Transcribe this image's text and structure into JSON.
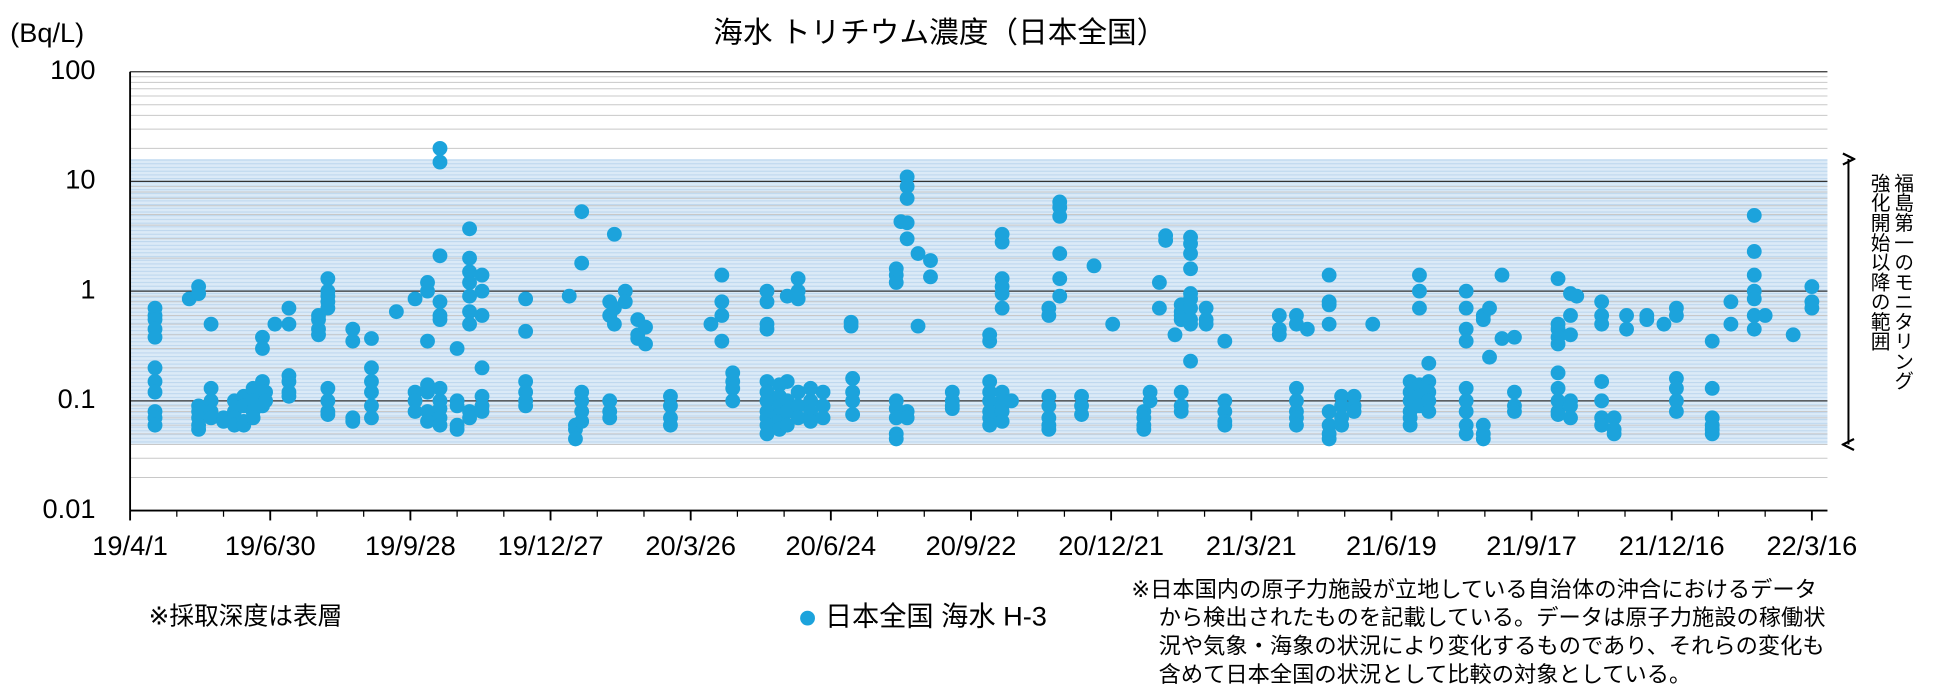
{
  "chart_data": {
    "type": "scatter",
    "title": "海水 トリチウム濃度（日本全国）",
    "y_label": "(Bq/L)",
    "log_y": true,
    "minor_grid": true,
    "xlim": [
      "2019-04-01",
      "2022-03-26"
    ],
    "xticks": [
      {
        "value": "2019-04-01",
        "label": "19/4/1"
      },
      {
        "value": "2019-06-30",
        "label": "19/6/30"
      },
      {
        "value": "2019-09-28",
        "label": "19/9/28"
      },
      {
        "value": "2019-12-27",
        "label": "19/12/27"
      },
      {
        "value": "2020-03-26",
        "label": "20/3/26"
      },
      {
        "value": "2020-06-24",
        "label": "20/6/24"
      },
      {
        "value": "2020-09-22",
        "label": "20/9/22"
      },
      {
        "value": "2020-12-21",
        "label": "20/12/21"
      },
      {
        "value": "2021-03-21",
        "label": "21/3/21"
      },
      {
        "value": "2021-06-19",
        "label": "21/6/19"
      },
      {
        "value": "2021-09-17",
        "label": "21/9/17"
      },
      {
        "value": "2021-12-16",
        "label": "21/12/16"
      },
      {
        "value": "2022-03-16",
        "label": "22/3/16"
      }
    ],
    "ylim": [
      0.01,
      100
    ],
    "yticks": [
      0.01,
      0.1,
      1,
      10,
      100
    ],
    "shaded_range": [
      0.04,
      16
    ],
    "shaded_label": [
      "福島第一のモニタリング",
      "強化開始以降の範囲"
    ],
    "legend": "bottom",
    "notes": {
      "left": "※採取深度は表層",
      "right": [
        "※日本国内の原子力施設が立地している自治体の沖合におけるデータ",
        "から検出されたものを記載している。データは原子力施設の稼働状",
        "況や気象・海象の状況により変化するものであり、それらの変化も",
        "含めて日本全国の状況として比較の対象としている。"
      ]
    },
    "series": [
      {
        "name": "日本全国 海水 H-3",
        "color": "#1ca3dc",
        "x": [
          "2019-04-17",
          "2019-04-17",
          "2019-04-17",
          "2019-04-17",
          "2019-04-17",
          "2019-04-17",
          "2019-04-17",
          "2019-04-17",
          "2019-04-17",
          "2019-04-17",
          "2019-04-17",
          "2019-05-09",
          "2019-05-15",
          "2019-05-15",
          "2019-05-15",
          "2019-05-15",
          "2019-05-15",
          "2019-05-15",
          "2019-05-15",
          "2019-05-23",
          "2019-05-23",
          "2019-05-23",
          "2019-05-23",
          "2019-05-23",
          "2019-05-31",
          "2019-05-31",
          "2019-06-07",
          "2019-06-07",
          "2019-06-07",
          "2019-06-07",
          "2019-06-13",
          "2019-06-13",
          "2019-06-13",
          "2019-06-13",
          "2019-06-19",
          "2019-06-19",
          "2019-06-19",
          "2019-06-19",
          "2019-06-25",
          "2019-06-25",
          "2019-06-25",
          "2019-06-25",
          "2019-06-25",
          "2019-06-27",
          "2019-06-27",
          "2019-07-03",
          "2019-07-12",
          "2019-07-12",
          "2019-07-12",
          "2019-07-12",
          "2019-07-12",
          "2019-07-12",
          "2019-07-31",
          "2019-07-31",
          "2019-07-31",
          "2019-07-31",
          "2019-08-06",
          "2019-08-06",
          "2019-08-06",
          "2019-08-06",
          "2019-08-06",
          "2019-08-06",
          "2019-08-06",
          "2019-08-06",
          "2019-08-06",
          "2019-08-22",
          "2019-08-22",
          "2019-08-22",
          "2019-08-22",
          "2019-09-03",
          "2019-09-03",
          "2019-09-03",
          "2019-09-03",
          "2019-09-03",
          "2019-09-03",
          "2019-09-19",
          "2019-10-01",
          "2019-10-01",
          "2019-10-01",
          "2019-10-01",
          "2019-10-09",
          "2019-10-09",
          "2019-10-09",
          "2019-10-09",
          "2019-10-09",
          "2019-10-09",
          "2019-10-09",
          "2019-10-17",
          "2019-10-17",
          "2019-10-17",
          "2019-10-17",
          "2019-10-17",
          "2019-10-17",
          "2019-10-17",
          "2019-10-17",
          "2019-10-17",
          "2019-10-17",
          "2019-10-17",
          "2019-10-28",
          "2019-10-28",
          "2019-10-28",
          "2019-10-28",
          "2019-10-28",
          "2019-11-05",
          "2019-11-05",
          "2019-11-05",
          "2019-11-05",
          "2019-11-05",
          "2019-11-05",
          "2019-11-05",
          "2019-11-05",
          "2019-11-05",
          "2019-11-13",
          "2019-11-13",
          "2019-11-13",
          "2019-11-13",
          "2019-11-13",
          "2019-11-13",
          "2019-11-13",
          "2019-12-11",
          "2019-12-11",
          "2019-12-11",
          "2019-12-11",
          "2019-12-11",
          "2019-12-11",
          "2020-01-08",
          "2020-01-12",
          "2020-01-12",
          "2020-01-12",
          "2020-01-16",
          "2020-01-16",
          "2020-01-16",
          "2020-01-16",
          "2020-01-16",
          "2020-01-16",
          "2020-02-03",
          "2020-02-03",
          "2020-02-03",
          "2020-02-03",
          "2020-02-03",
          "2020-02-06",
          "2020-02-06",
          "2020-02-06",
          "2020-02-13",
          "2020-02-13",
          "2020-02-21",
          "2020-02-21",
          "2020-02-21",
          "2020-02-26",
          "2020-02-26",
          "2020-03-13",
          "2020-03-13",
          "2020-03-13",
          "2020-03-13",
          "2020-04-08",
          "2020-04-15",
          "2020-04-15",
          "2020-04-15",
          "2020-04-15",
          "2020-04-22",
          "2020-04-22",
          "2020-04-22",
          "2020-04-22",
          "2020-05-14",
          "2020-05-14",
          "2020-05-14",
          "2020-05-14",
          "2020-05-14",
          "2020-05-14",
          "2020-05-14",
          "2020-05-14",
          "2020-05-14",
          "2020-05-14",
          "2020-05-14",
          "2020-05-22",
          "2020-05-22",
          "2020-05-22",
          "2020-05-22",
          "2020-05-22",
          "2020-05-22",
          "2020-05-27",
          "2020-05-27",
          "2020-05-27",
          "2020-05-27",
          "2020-05-27",
          "2020-06-03",
          "2020-06-03",
          "2020-06-03",
          "2020-06-03",
          "2020-06-03",
          "2020-06-03",
          "2020-06-11",
          "2020-06-11",
          "2020-06-11",
          "2020-06-11",
          "2020-06-19",
          "2020-06-19",
          "2020-06-19",
          "2020-07-07",
          "2020-07-07",
          "2020-07-08",
          "2020-07-08",
          "2020-07-08",
          "2020-07-08",
          "2020-08-05",
          "2020-08-05",
          "2020-08-05",
          "2020-08-05",
          "2020-08-05",
          "2020-08-05",
          "2020-08-05",
          "2020-08-05",
          "2020-08-08",
          "2020-08-12",
          "2020-08-12",
          "2020-08-12",
          "2020-08-12",
          "2020-08-12",
          "2020-08-12",
          "2020-08-12",
          "2020-08-19",
          "2020-08-19",
          "2020-08-27",
          "2020-08-27",
          "2020-09-10",
          "2020-09-10",
          "2020-09-10",
          "2020-09-10",
          "2020-10-04",
          "2020-10-04",
          "2020-10-04",
          "2020-10-04",
          "2020-10-04",
          "2020-10-04",
          "2020-10-04",
          "2020-10-04",
          "2020-10-12",
          "2020-10-12",
          "2020-10-12",
          "2020-10-12",
          "2020-10-12",
          "2020-10-12",
          "2020-10-12",
          "2020-10-12",
          "2020-10-12",
          "2020-10-12",
          "2020-10-12",
          "2020-10-18",
          "2020-11-11",
          "2020-11-11",
          "2020-11-11",
          "2020-11-11",
          "2020-11-11",
          "2020-11-11",
          "2020-11-11",
          "2020-11-18",
          "2020-11-18",
          "2020-11-18",
          "2020-11-18",
          "2020-11-18",
          "2020-11-18",
          "2020-12-02",
          "2020-12-02",
          "2020-12-02",
          "2020-12-10",
          "2020-12-22",
          "2021-01-11",
          "2021-01-11",
          "2021-01-11",
          "2021-01-11",
          "2021-01-15",
          "2021-01-15",
          "2021-01-21",
          "2021-01-21",
          "2021-01-25",
          "2021-01-25",
          "2021-01-31",
          "2021-02-04",
          "2021-02-04",
          "2021-02-04",
          "2021-02-04",
          "2021-02-04",
          "2021-02-04",
          "2021-02-04",
          "2021-02-10",
          "2021-02-10",
          "2021-02-10",
          "2021-02-10",
          "2021-02-10",
          "2021-02-10",
          "2021-02-10",
          "2021-02-10",
          "2021-02-10",
          "2021-02-10",
          "2021-02-20",
          "2021-02-20",
          "2021-02-20",
          "2021-03-04",
          "2021-03-04",
          "2021-03-04",
          "2021-03-04",
          "2021-03-04",
          "2021-04-08",
          "2021-04-08",
          "2021-04-08",
          "2021-04-19",
          "2021-04-19",
          "2021-04-19",
          "2021-04-19",
          "2021-04-19",
          "2021-04-19",
          "2021-04-19",
          "2021-04-26",
          "2021-05-10",
          "2021-05-10",
          "2021-05-10",
          "2021-05-10",
          "2021-05-10",
          "2021-05-10",
          "2021-05-10",
          "2021-05-10",
          "2021-05-18",
          "2021-05-18",
          "2021-05-18",
          "2021-05-18",
          "2021-05-26",
          "2021-05-26",
          "2021-05-26",
          "2021-06-07",
          "2021-07-01",
          "2021-07-01",
          "2021-07-01",
          "2021-07-01",
          "2021-07-01",
          "2021-07-01",
          "2021-07-07",
          "2021-07-07",
          "2021-07-07",
          "2021-07-07",
          "2021-07-07",
          "2021-07-07",
          "2021-07-13",
          "2021-07-13",
          "2021-07-13",
          "2021-07-13",
          "2021-07-13",
          "2021-08-06",
          "2021-08-06",
          "2021-08-06",
          "2021-08-06",
          "2021-08-06",
          "2021-08-06",
          "2021-08-06",
          "2021-08-06",
          "2021-08-06",
          "2021-08-17",
          "2021-08-17",
          "2021-08-17",
          "2021-08-17",
          "2021-08-17",
          "2021-08-21",
          "2021-08-21",
          "2021-08-29",
          "2021-08-29",
          "2021-09-06",
          "2021-09-06",
          "2021-09-06",
          "2021-09-06",
          "2021-10-04",
          "2021-10-04",
          "2021-10-04",
          "2021-10-04",
          "2021-10-04",
          "2021-10-04",
          "2021-10-04",
          "2021-10-04",
          "2021-10-04",
          "2021-10-04",
          "2021-10-12",
          "2021-10-12",
          "2021-10-12",
          "2021-10-12",
          "2021-10-12",
          "2021-10-12",
          "2021-10-16",
          "2021-11-01",
          "2021-11-01",
          "2021-11-01",
          "2021-11-01",
          "2021-11-01",
          "2021-11-01",
          "2021-11-01",
          "2021-11-09",
          "2021-11-09",
          "2021-11-09",
          "2021-11-17",
          "2021-11-17",
          "2021-11-30",
          "2021-11-30",
          "2021-12-11",
          "2021-12-19",
          "2021-12-19",
          "2021-12-19",
          "2021-12-19",
          "2021-12-19",
          "2021-12-19",
          "2022-01-11",
          "2022-01-11",
          "2022-01-11",
          "2022-01-11",
          "2022-01-11",
          "2022-01-11",
          "2022-01-23",
          "2022-01-23",
          "2022-02-07",
          "2022-02-07",
          "2022-02-07",
          "2022-02-07",
          "2022-02-07",
          "2022-02-07",
          "2022-02-07",
          "2022-02-14",
          "2022-03-04",
          "2022-03-16",
          "2022-03-16",
          "2022-03-16"
        ],
        "values": [
          0.7,
          0.6,
          0.55,
          0.45,
          0.38,
          0.2,
          0.15,
          0.12,
          0.08,
          0.07,
          0.06,
          0.85,
          1.1,
          0.95,
          0.09,
          0.08,
          0.07,
          0.06,
          0.055,
          0.5,
          0.13,
          0.1,
          0.08,
          0.07,
          0.07,
          0.065,
          0.1,
          0.08,
          0.07,
          0.06,
          0.11,
          0.09,
          0.065,
          0.06,
          0.13,
          0.1,
          0.08,
          0.07,
          0.38,
          0.3,
          0.15,
          0.12,
          0.09,
          0.12,
          0.1,
          0.5,
          0.7,
          0.5,
          0.17,
          0.15,
          0.12,
          0.11,
          0.6,
          0.55,
          0.45,
          0.4,
          1.3,
          1.0,
          0.9,
          0.8,
          0.7,
          0.13,
          0.1,
          0.08,
          0.075,
          0.45,
          0.35,
          0.07,
          0.065,
          0.37,
          0.2,
          0.15,
          0.12,
          0.09,
          0.07,
          0.65,
          0.85,
          0.12,
          0.1,
          0.08,
          1.2,
          1.0,
          0.35,
          0.14,
          0.12,
          0.08,
          0.065,
          20,
          15,
          2.1,
          0.8,
          0.6,
          0.55,
          0.13,
          0.1,
          0.085,
          0.07,
          0.06,
          0.3,
          0.1,
          0.09,
          0.06,
          0.055,
          3.7,
          2.0,
          1.5,
          1.2,
          0.9,
          0.65,
          0.5,
          0.08,
          0.07,
          1.4,
          1.0,
          0.6,
          0.2,
          0.11,
          0.09,
          0.08,
          0.85,
          0.43,
          0.15,
          0.12,
          0.1,
          0.09,
          0.9,
          0.06,
          0.055,
          0.045,
          5.3,
          1.8,
          0.12,
          0.1,
          0.08,
          0.065,
          0.8,
          0.6,
          0.1,
          0.08,
          0.07,
          3.3,
          0.7,
          0.5,
          1.0,
          0.8,
          0.55,
          0.4,
          0.37,
          0.47,
          0.33,
          0.11,
          0.09,
          0.07,
          0.06,
          0.5,
          1.4,
          0.8,
          0.6,
          0.35,
          0.18,
          0.15,
          0.13,
          0.1,
          1.0,
          0.8,
          0.5,
          0.45,
          0.15,
          0.12,
          0.1,
          0.08,
          0.07,
          0.06,
          0.05,
          0.14,
          0.11,
          0.09,
          0.075,
          0.065,
          0.055,
          0.9,
          0.15,
          0.1,
          0.08,
          0.06,
          1.3,
          1.0,
          0.85,
          0.12,
          0.09,
          0.07,
          0.13,
          0.1,
          0.08,
          0.065,
          0.12,
          0.09,
          0.07,
          0.52,
          0.48,
          0.16,
          0.12,
          0.1,
          0.075,
          1.6,
          1.4,
          1.2,
          0.1,
          0.085,
          0.07,
          0.05,
          0.045,
          4.3,
          11,
          9,
          7,
          4.2,
          3.0,
          0.08,
          0.07,
          2.2,
          0.48,
          1.9,
          1.35,
          0.12,
          0.1,
          0.09,
          0.085,
          0.4,
          0.35,
          0.15,
          0.12,
          0.1,
          0.08,
          0.07,
          0.06,
          3.3,
          2.8,
          1.3,
          1.1,
          0.95,
          0.7,
          0.12,
          0.1,
          0.09,
          0.08,
          0.065,
          0.1,
          0.7,
          0.6,
          0.11,
          0.09,
          0.07,
          0.06,
          0.055,
          6.5,
          5.8,
          4.8,
          2.2,
          1.3,
          0.9,
          0.11,
          0.09,
          0.075,
          1.7,
          0.5,
          0.08,
          0.07,
          0.06,
          0.055,
          0.12,
          0.1,
          1.2,
          0.7,
          3.2,
          2.9,
          0.4,
          0.75,
          0.65,
          0.6,
          0.55,
          0.12,
          0.09,
          0.08,
          3.1,
          2.7,
          2.2,
          1.6,
          0.95,
          0.85,
          0.7,
          0.55,
          0.5,
          0.23,
          0.7,
          0.55,
          0.5,
          0.35,
          0.1,
          0.08,
          0.065,
          0.06,
          0.6,
          0.45,
          0.4,
          0.6,
          0.5,
          0.13,
          0.1,
          0.08,
          0.07,
          0.06,
          0.45,
          1.4,
          0.8,
          0.75,
          0.5,
          0.08,
          0.06,
          0.05,
          0.045,
          0.11,
          0.09,
          0.07,
          0.06,
          0.11,
          0.09,
          0.08,
          0.5,
          0.15,
          0.12,
          0.1,
          0.08,
          0.07,
          0.06,
          1.4,
          1.0,
          0.7,
          0.14,
          0.11,
          0.09,
          0.22,
          0.15,
          0.12,
          0.1,
          0.08,
          1.0,
          0.7,
          0.45,
          0.35,
          0.13,
          0.1,
          0.08,
          0.06,
          0.05,
          0.6,
          0.55,
          0.06,
          0.05,
          0.045,
          0.7,
          0.25,
          1.4,
          0.37,
          0.38,
          0.12,
          0.09,
          0.08,
          1.3,
          0.5,
          0.45,
          0.38,
          0.33,
          0.18,
          0.13,
          0.1,
          0.08,
          0.075,
          0.95,
          0.6,
          0.4,
          0.1,
          0.09,
          0.07,
          0.9,
          0.8,
          0.6,
          0.5,
          0.15,
          0.1,
          0.07,
          0.06,
          0.07,
          0.055,
          0.05,
          0.6,
          0.45,
          0.6,
          0.55,
          0.5,
          0.7,
          0.6,
          0.16,
          0.13,
          0.1,
          0.08,
          0.35,
          0.13,
          0.07,
          0.06,
          0.055,
          0.05,
          0.8,
          0.5,
          4.9,
          2.3,
          1.4,
          1.0,
          0.85,
          0.6,
          0.45,
          0.6,
          0.4,
          1.1,
          0.8,
          0.7
        ]
      }
    ]
  }
}
